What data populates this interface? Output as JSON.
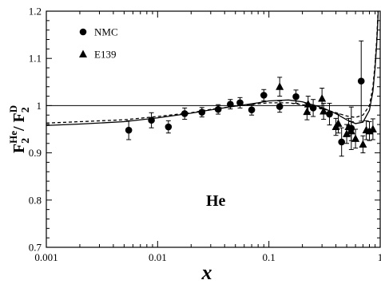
{
  "chart_data": {
    "type": "scatter",
    "xlabel": "x",
    "ylabel": {
      "main": "F",
      "sub": "2",
      "sup": "He",
      "sep": "/ F",
      "sub2": "2",
      "sup2": "D"
    },
    "x_scale": "log",
    "xlim": [
      0.001,
      1
    ],
    "ylim": [
      0.7,
      1.2
    ],
    "x_ticks": [
      0.001,
      0.01,
      0.1,
      1
    ],
    "x_tick_labels": [
      "0.001",
      "0.01",
      "0.1",
      "1"
    ],
    "y_ticks": [
      0.7,
      0.8,
      0.9,
      1.0,
      1.1,
      1.2
    ],
    "y_tick_labels": [
      "0.7",
      "0.8",
      "0.9",
      "1",
      "1.1",
      "1.2"
    ],
    "reference_line": 1.0,
    "annotation": "He",
    "legend_position": "top-left",
    "series": [
      {
        "name": "NMC",
        "marker": "circle",
        "points": [
          {
            "x": 0.0055,
            "y": 0.948,
            "err": 0.02
          },
          {
            "x": 0.0088,
            "y": 0.969,
            "err": 0.016
          },
          {
            "x": 0.0125,
            "y": 0.955,
            "err": 0.013
          },
          {
            "x": 0.0175,
            "y": 0.983,
            "err": 0.012
          },
          {
            "x": 0.025,
            "y": 0.986,
            "err": 0.01
          },
          {
            "x": 0.035,
            "y": 0.992,
            "err": 0.01
          },
          {
            "x": 0.045,
            "y": 1.003,
            "err": 0.01
          },
          {
            "x": 0.055,
            "y": 1.006,
            "err": 0.011
          },
          {
            "x": 0.07,
            "y": 0.991,
            "err": 0.011
          },
          {
            "x": 0.09,
            "y": 1.022,
            "err": 0.012
          },
          {
            "x": 0.125,
            "y": 0.998,
            "err": 0.012
          },
          {
            "x": 0.175,
            "y": 1.019,
            "err": 0.014
          },
          {
            "x": 0.25,
            "y": 0.995,
            "err": 0.018
          },
          {
            "x": 0.35,
            "y": 0.982,
            "err": 0.023
          },
          {
            "x": 0.45,
            "y": 0.923,
            "err": 0.03
          },
          {
            "x": 0.55,
            "y": 0.952,
            "err": 0.045
          },
          {
            "x": 0.675,
            "y": 1.052,
            "err": 0.085
          }
        ]
      },
      {
        "name": "E139",
        "marker": "triangle",
        "points": [
          {
            "x": 0.125,
            "y": 1.04,
            "err": 0.02
          },
          {
            "x": 0.22,
            "y": 0.987,
            "err": 0.017
          },
          {
            "x": 0.225,
            "y": 1.003,
            "err": 0.017
          },
          {
            "x": 0.3,
            "y": 1.015,
            "err": 0.022
          },
          {
            "x": 0.31,
            "y": 0.988,
            "err": 0.017
          },
          {
            "x": 0.4,
            "y": 0.955,
            "err": 0.018
          },
          {
            "x": 0.42,
            "y": 0.962,
            "err": 0.02
          },
          {
            "x": 0.5,
            "y": 0.94,
            "err": 0.02
          },
          {
            "x": 0.52,
            "y": 0.955,
            "err": 0.018
          },
          {
            "x": 0.55,
            "y": 0.946,
            "err": 0.02
          },
          {
            "x": 0.6,
            "y": 0.93,
            "err": 0.02
          },
          {
            "x": 0.7,
            "y": 0.918,
            "err": 0.018
          },
          {
            "x": 0.75,
            "y": 0.948,
            "err": 0.02
          },
          {
            "x": 0.8,
            "y": 0.946,
            "err": 0.02
          },
          {
            "x": 0.86,
            "y": 0.95,
            "err": 0.022
          }
        ]
      }
    ],
    "curves": [
      {
        "style": "solid",
        "points": [
          [
            0.001,
            0.958
          ],
          [
            0.002,
            0.961
          ],
          [
            0.005,
            0.966
          ],
          [
            0.01,
            0.974
          ],
          [
            0.02,
            0.984
          ],
          [
            0.03,
            0.991
          ],
          [
            0.05,
            0.999
          ],
          [
            0.08,
            1.006
          ],
          [
            0.1,
            1.01
          ],
          [
            0.15,
            1.012
          ],
          [
            0.2,
            1.008
          ],
          [
            0.3,
            0.996
          ],
          [
            0.4,
            0.983
          ],
          [
            0.5,
            0.97
          ],
          [
            0.6,
            0.962
          ],
          [
            0.7,
            0.965
          ],
          [
            0.8,
            0.99
          ],
          [
            0.86,
            1.03
          ],
          [
            0.9,
            1.08
          ],
          [
            0.93,
            1.13
          ],
          [
            0.95,
            1.175
          ],
          [
            0.96,
            1.2
          ]
        ]
      },
      {
        "style": "dashed",
        "points": [
          [
            0.001,
            0.963
          ],
          [
            0.002,
            0.966
          ],
          [
            0.005,
            0.97
          ],
          [
            0.01,
            0.977
          ],
          [
            0.02,
            0.985
          ],
          [
            0.03,
            0.992
          ],
          [
            0.05,
            0.999
          ],
          [
            0.08,
            1.004
          ],
          [
            0.1,
            1.006
          ],
          [
            0.15,
            1.006
          ],
          [
            0.2,
            1.002
          ],
          [
            0.3,
            0.994
          ],
          [
            0.4,
            0.985
          ],
          [
            0.5,
            0.978
          ],
          [
            0.6,
            0.975
          ],
          [
            0.7,
            0.98
          ],
          [
            0.8,
            1.0
          ],
          [
            0.86,
            1.04
          ],
          [
            0.9,
            1.09
          ],
          [
            0.93,
            1.14
          ],
          [
            0.95,
            1.185
          ],
          [
            0.955,
            1.2
          ]
        ]
      }
    ]
  }
}
